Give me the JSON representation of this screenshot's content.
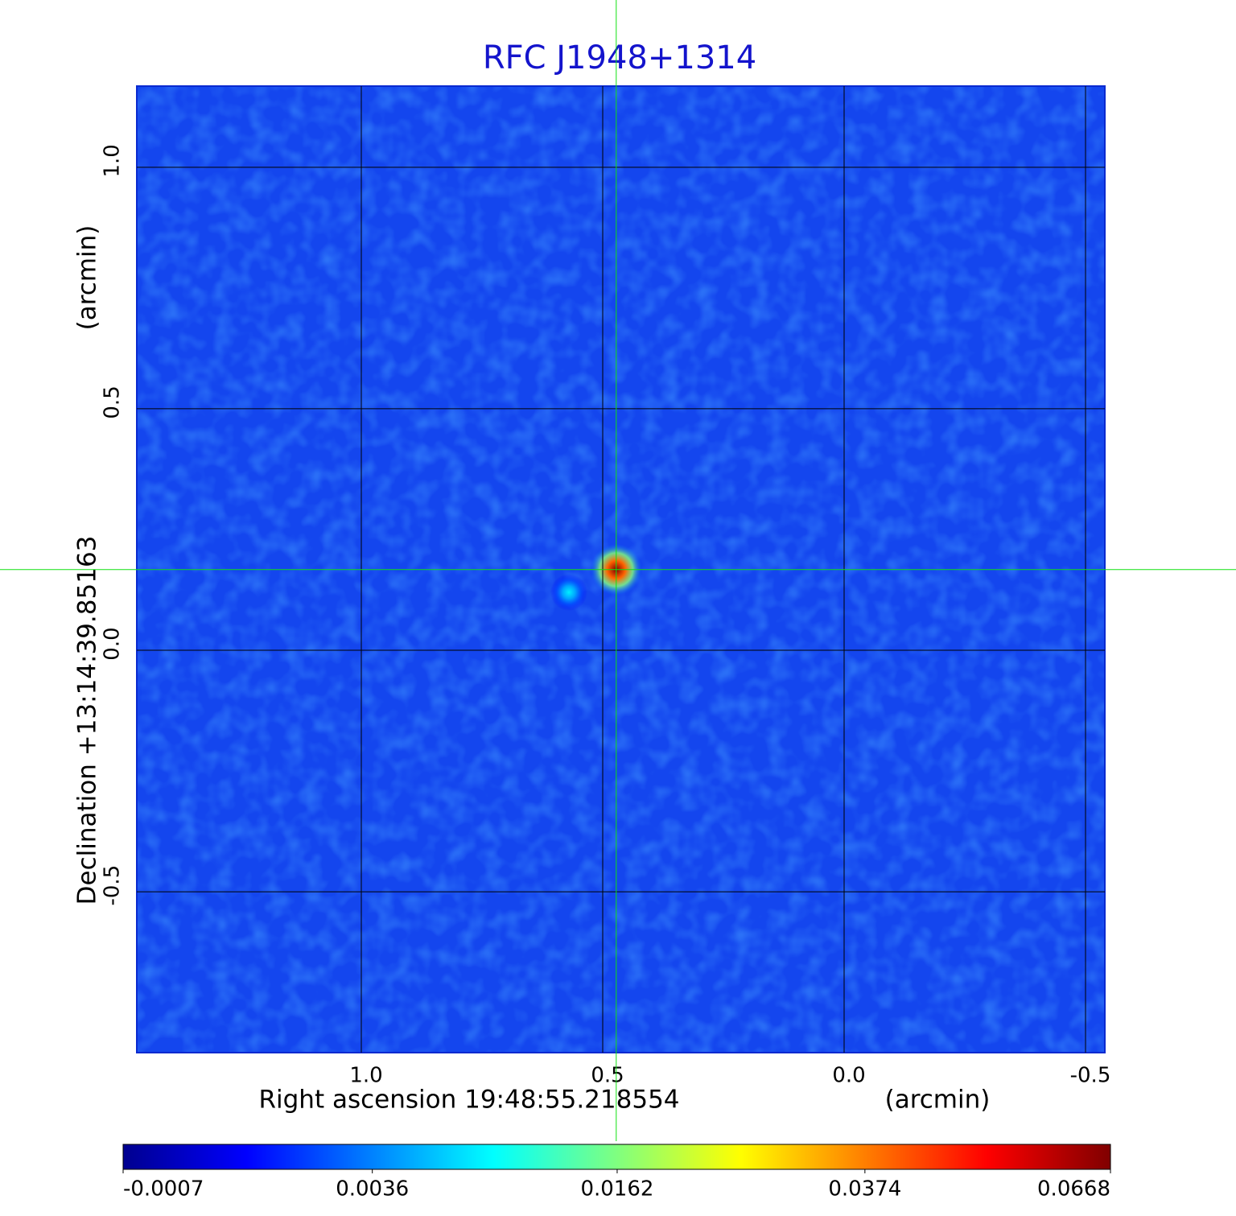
{
  "chart_data": {
    "type": "image",
    "title": "RFC J1948+1314",
    "x_label": "Right ascension  19:48:55.218554",
    "x_unit": "(arcmin)",
    "y_label": "Declination  +13:14:39.85163",
    "y_unit": "(arcmin)",
    "xlim": [
      1.465,
      -0.54
    ],
    "ylim": [
      -0.833,
      1.168
    ],
    "xticks": [
      {
        "value": 1,
        "label": "1.0"
      },
      0.5,
      {
        "value": 0,
        "label": "0.0"
      },
      -0.5
    ],
    "yticks": [
      {
        "value": 1,
        "label": "1.0"
      },
      0.5,
      {
        "value": 0,
        "label": "0.0"
      },
      -0.5
    ],
    "grid": true,
    "crosshair": [
      0.472,
      0.167
    ],
    "sources": [
      {
        "x": 0.472,
        "y": 0.167,
        "peak": 0.0668
      },
      {
        "x": 0.57,
        "y": 0.12,
        "peak": 0.008
      }
    ],
    "colorbar": {
      "colormap": "jet",
      "scale": "sqrt",
      "clim": [
        -0.0007,
        0.0668
      ],
      "ticks": [
        -0.0007,
        0.0036,
        0.0162,
        0.0374,
        0.0668
      ]
    }
  }
}
